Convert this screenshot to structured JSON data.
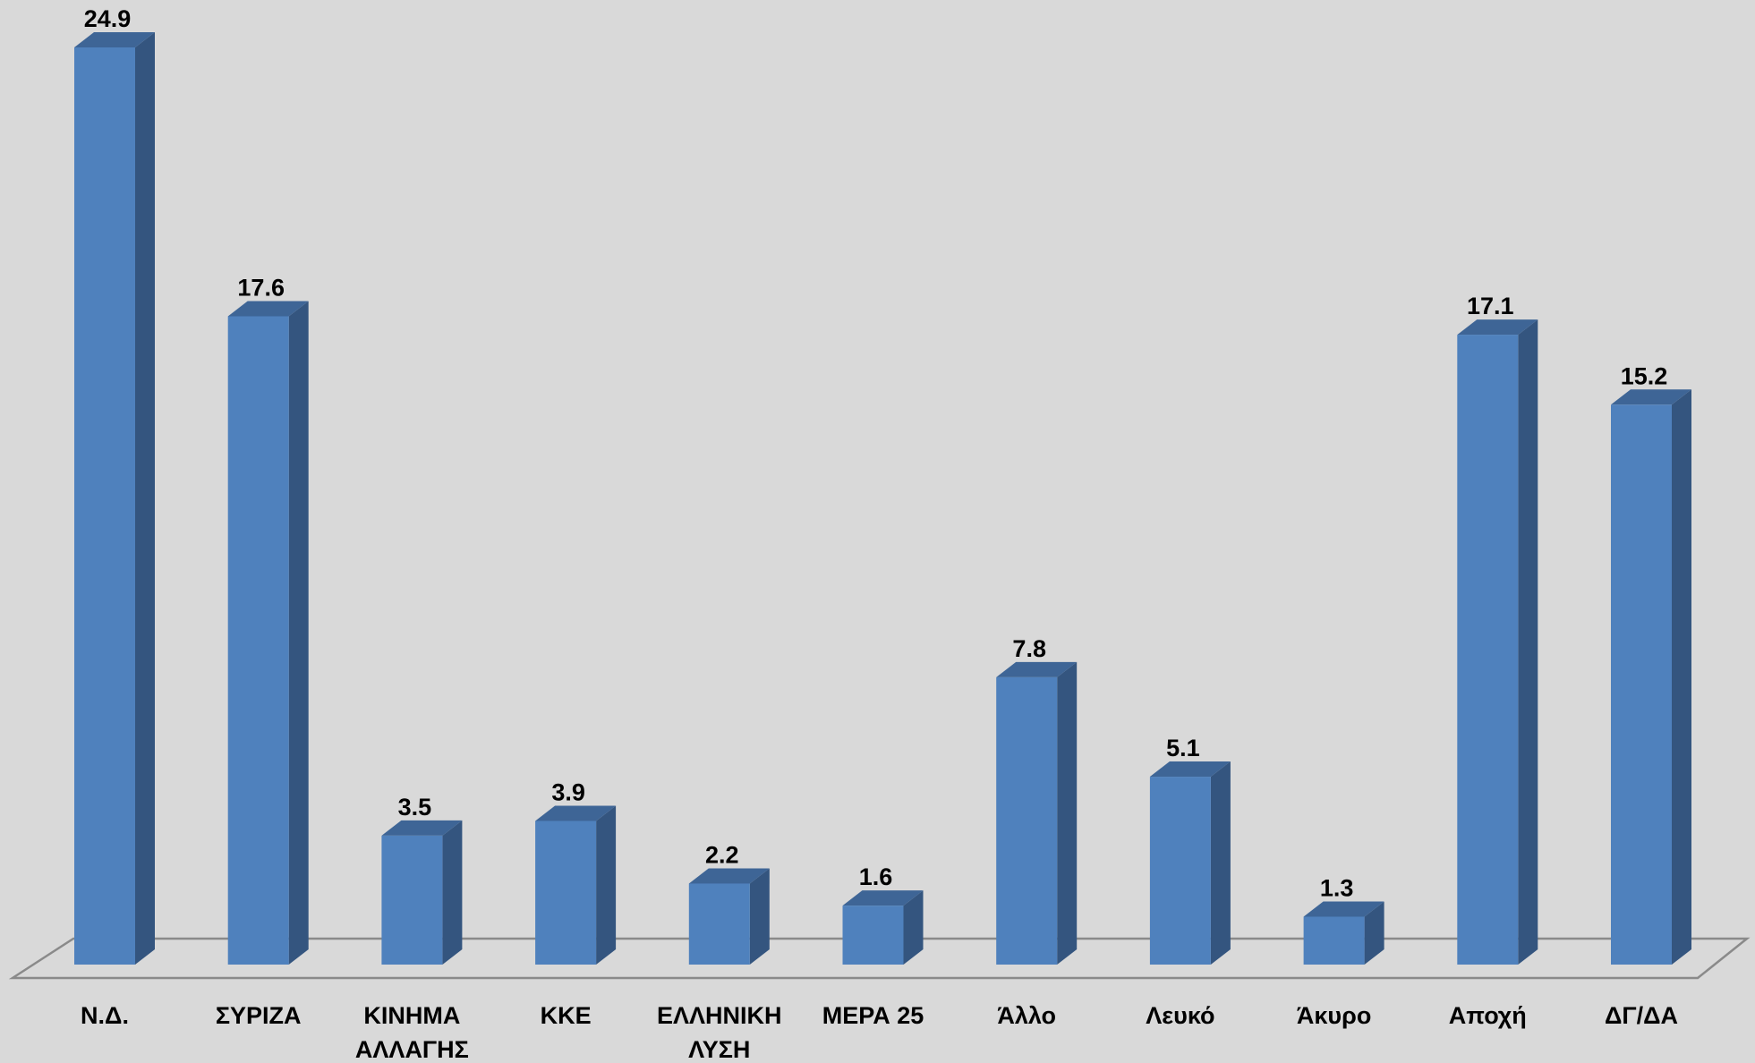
{
  "chart_data": {
    "type": "bar",
    "categories": [
      [
        "Ν.Δ."
      ],
      [
        "ΣΥΡΙΖΑ"
      ],
      [
        "ΚΙΝΗΜΑ",
        "ΑΛΛΑΓΗΣ"
      ],
      [
        "ΚΚΕ"
      ],
      [
        "ΕΛΛΗΝΙΚΗ",
        "ΛΥΣΗ"
      ],
      [
        "ΜΕΡΑ 25"
      ],
      [
        "Άλλο"
      ],
      [
        "Λευκό"
      ],
      [
        "Άκυρο"
      ],
      [
        "Αποχή"
      ],
      [
        "ΔΓ/ΔΑ"
      ]
    ],
    "values": [
      24.9,
      17.6,
      3.5,
      3.9,
      2.2,
      1.6,
      7.8,
      5.1,
      1.3,
      17.1,
      15.2
    ],
    "value_labels": [
      "24.9",
      "17.6",
      "3.5",
      "3.9",
      "2.2",
      "1.6",
      "7.8",
      "5.1",
      "1.3",
      "17.1",
      "15.2"
    ],
    "title": "",
    "xlabel": "",
    "ylabel": "",
    "ylim": [
      0,
      24.9
    ],
    "grid": false,
    "legend": "none",
    "style": "3d-column",
    "colors": {
      "background": "#d9d9d9",
      "bar_front": "#4f81bd",
      "bar_side": "#34557f",
      "bar_top": "#3e6596",
      "floor_line": "#8a8a8a"
    }
  }
}
